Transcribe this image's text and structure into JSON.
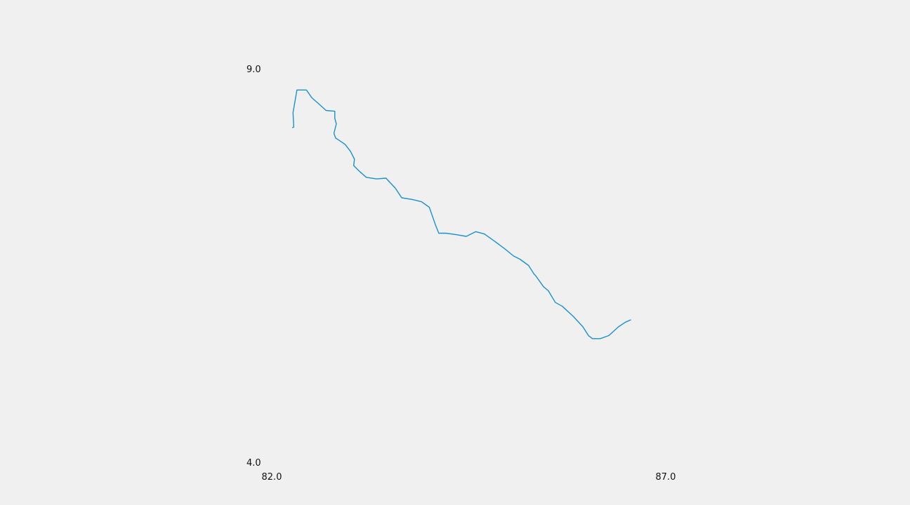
{
  "chart_data": {
    "type": "line",
    "title": "",
    "xlabel": "",
    "ylabel": "",
    "xlim": [
      82.0,
      87.0
    ],
    "ylim": [
      4.0,
      9.0
    ],
    "x_ticks": [
      "82.0",
      "87.0"
    ],
    "y_ticks": [
      "9.0",
      "4.0"
    ],
    "grid": false,
    "line_color": "#1a90d0",
    "series": [
      {
        "x": [
          82.26,
          82.28,
          82.27,
          82.32,
          82.44,
          82.51,
          82.59,
          82.69,
          82.8,
          82.8,
          82.82,
          82.79,
          82.81,
          82.93,
          83.0,
          83.05,
          83.04,
          83.11,
          83.2,
          83.33,
          83.45,
          83.57,
          83.65,
          83.78,
          83.9,
          84.0,
          84.08,
          84.12,
          84.21,
          84.35,
          84.47,
          84.59,
          84.7,
          84.84,
          84.96,
          85.07,
          85.15,
          85.26,
          85.33,
          85.35,
          85.45,
          85.51,
          85.6,
          85.69,
          85.83,
          85.95,
          86.02,
          86.07,
          86.17,
          86.28,
          86.4,
          86.49,
          86.56
        ],
        "y": [
          8.25,
          8.26,
          8.44,
          8.73,
          8.73,
          8.63,
          8.56,
          8.47,
          8.46,
          8.37,
          8.3,
          8.18,
          8.12,
          8.04,
          7.95,
          7.85,
          7.77,
          7.7,
          7.62,
          7.6,
          7.61,
          7.48,
          7.36,
          7.34,
          7.31,
          7.24,
          7.01,
          6.91,
          6.91,
          6.89,
          6.87,
          6.93,
          6.9,
          6.8,
          6.71,
          6.62,
          6.58,
          6.5,
          6.39,
          6.37,
          6.23,
          6.18,
          6.03,
          5.98,
          5.85,
          5.72,
          5.61,
          5.57,
          5.57,
          5.61,
          5.72,
          5.78,
          5.81
        ]
      }
    ]
  }
}
